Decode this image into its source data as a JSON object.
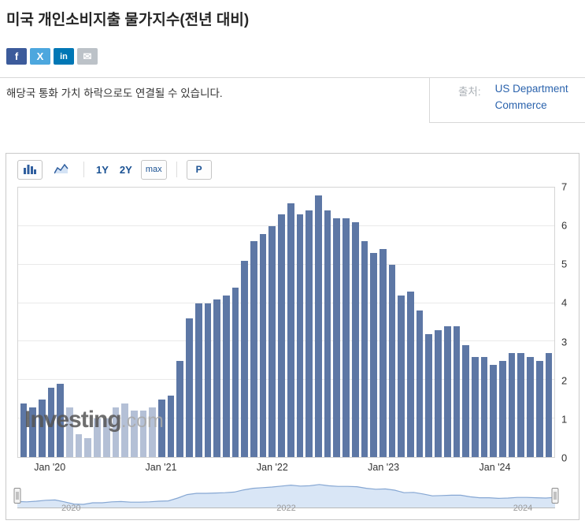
{
  "page": {
    "title": "미국 개인소비지출 물가지수(전년 대비)"
  },
  "share": {
    "facebook": "f",
    "x": "X",
    "linkedin": "in",
    "email": "✉"
  },
  "description": {
    "text": "해당국 통화 가치 하락으로도 연결될 수 있습니다.",
    "source_label": "출처:",
    "source_line1": "US Department",
    "source_line2": "Commerce"
  },
  "toolbar": {
    "range_1y": "1Y",
    "range_2y": "2Y",
    "range_max": "max",
    "print": "P"
  },
  "watermark": {
    "brand": "Investing",
    "suffix": ".com"
  },
  "chart_data": {
    "type": "bar",
    "title": "미국 개인소비지출 물가지수(전년 대비)",
    "ylabel": "",
    "ylim": [
      0,
      7
    ],
    "yticks": [
      0,
      1,
      2,
      3,
      4,
      5,
      6,
      7
    ],
    "grid": true,
    "values": [
      1.4,
      1.3,
      1.5,
      1.8,
      1.9,
      1.3,
      0.6,
      0.5,
      1.0,
      1.0,
      1.3,
      1.4,
      1.2,
      1.2,
      1.3,
      1.5,
      1.6,
      2.5,
      3.6,
      4.0,
      4.0,
      4.1,
      4.2,
      4.4,
      5.1,
      5.6,
      5.8,
      6.0,
      6.3,
      6.6,
      6.3,
      6.4,
      6.8,
      6.4,
      6.2,
      6.2,
      6.1,
      5.6,
      5.3,
      5.4,
      5.0,
      4.2,
      4.3,
      3.8,
      3.2,
      3.3,
      3.4,
      3.4,
      2.9,
      2.6,
      2.6,
      2.4,
      2.5,
      2.7,
      2.7,
      2.6,
      2.5,
      2.7
    ],
    "xticks": [
      {
        "label": "Jan '20",
        "index": 3
      },
      {
        "label": "Jan '21",
        "index": 15
      },
      {
        "label": "Jan '22",
        "index": 27
      },
      {
        "label": "Jan '23",
        "index": 39
      },
      {
        "label": "Jan '24",
        "index": 51
      }
    ],
    "dimmed_range": [
      5,
      14
    ],
    "bar_color": "#5d77a5",
    "bar_color_dimmed": "#b4c0d6",
    "navigator_years": [
      {
        "label": "2020",
        "pos_pct": 10
      },
      {
        "label": "2022",
        "pos_pct": 50
      },
      {
        "label": "2024",
        "pos_pct": 94
      }
    ],
    "legend": null
  }
}
